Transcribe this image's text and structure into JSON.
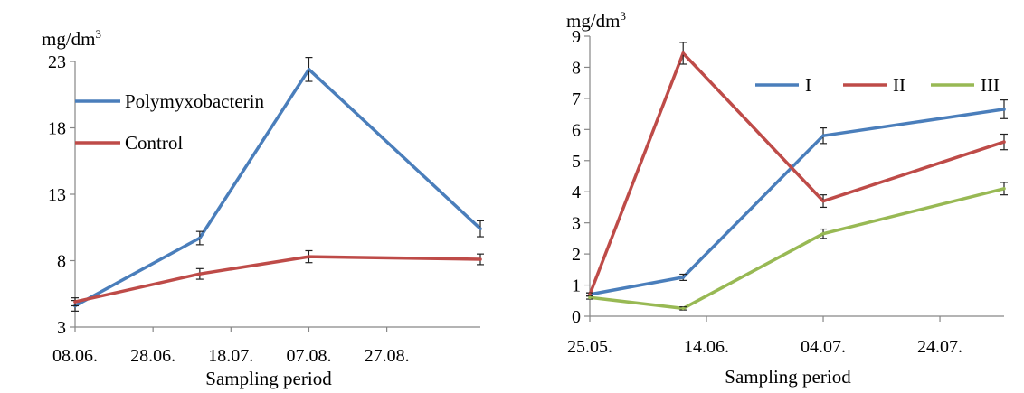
{
  "chart_data": [
    {
      "type": "line",
      "unit_label": "mg/dm",
      "unit_superscript": "3",
      "xlabel": "Sampling period",
      "x_tick_labels": [
        "08.06.",
        "28.06.",
        "18.07.",
        "07.08.",
        "27.08."
      ],
      "x_ticks": [
        "2000-06-08",
        "2000-06-28",
        "2000-07-18",
        "2000-08-07",
        "2000-08-27"
      ],
      "xlim": [
        "2000-06-08",
        "2000-09-20"
      ],
      "ylim": [
        3,
        23
      ],
      "yticks": [
        3,
        8,
        13,
        18,
        23
      ],
      "legend_position": "top-left",
      "series": [
        {
          "name": "Polymyxobacterin",
          "color": "#4a7ebb",
          "x": [
            "2000-06-08",
            "2000-07-10",
            "2000-08-07",
            "2000-09-20"
          ],
          "values": [
            4.6,
            9.7,
            22.4,
            10.4
          ],
          "errors": [
            0.4,
            0.5,
            0.9,
            0.6
          ]
        },
        {
          "name": "Control",
          "color": "#be4b48",
          "x": [
            "2000-06-08",
            "2000-07-10",
            "2000-08-07",
            "2000-09-20"
          ],
          "values": [
            4.9,
            7.0,
            8.3,
            8.1
          ],
          "errors": [
            0.3,
            0.4,
            0.45,
            0.4
          ]
        }
      ]
    },
    {
      "type": "line",
      "unit_label": "mg/dm",
      "unit_superscript": "3",
      "xlabel": "Sampling period",
      "x_tick_labels": [
        "25.05.",
        "14.06.",
        "04.07.",
        "24.07."
      ],
      "x_ticks": [
        "2000-05-25",
        "2000-06-14",
        "2000-07-04",
        "2000-07-24"
      ],
      "xlim": [
        "2000-05-25",
        "2000-08-04"
      ],
      "ylim": [
        0,
        9
      ],
      "yticks": [
        0,
        1,
        2,
        3,
        4,
        5,
        6,
        7,
        8,
        9
      ],
      "legend_position": "top-right",
      "series": [
        {
          "name": "I",
          "color": "#4a7ebb",
          "x": [
            "2000-05-25",
            "2000-06-10",
            "2000-07-04",
            "2000-08-04"
          ],
          "values": [
            0.7,
            1.25,
            5.8,
            6.65
          ],
          "errors": [
            0.05,
            0.1,
            0.25,
            0.3
          ]
        },
        {
          "name": "II",
          "color": "#be4b48",
          "x": [
            "2000-05-25",
            "2000-06-10",
            "2000-07-04",
            "2000-08-04"
          ],
          "values": [
            0.7,
            8.45,
            3.7,
            5.6
          ],
          "errors": [
            0.05,
            0.35,
            0.2,
            0.25
          ]
        },
        {
          "name": "III",
          "color": "#98b954",
          "x": [
            "2000-05-25",
            "2000-06-10",
            "2000-07-04",
            "2000-08-04"
          ],
          "values": [
            0.6,
            0.25,
            2.65,
            4.1
          ],
          "errors": [
            0.05,
            0.05,
            0.15,
            0.2
          ]
        }
      ]
    }
  ]
}
